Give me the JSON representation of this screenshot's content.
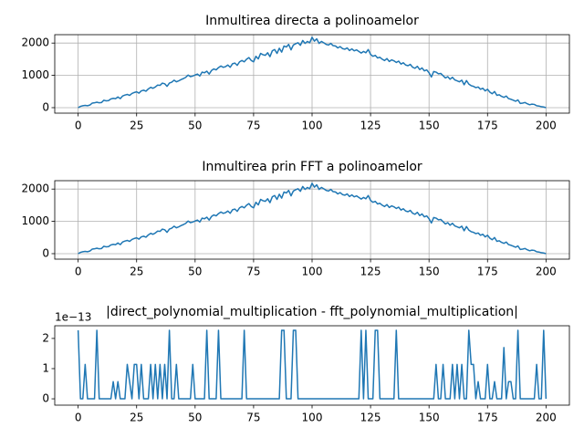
{
  "chart_data": [
    {
      "type": "line",
      "title": "Inmultirea directa a polinoamelor",
      "color": "#1f77b4",
      "grid": true,
      "x": [
        0,
        1,
        2,
        3,
        4,
        5,
        6,
        7,
        8,
        9,
        10,
        11,
        12,
        13,
        14,
        15,
        16,
        17,
        18,
        19,
        20,
        21,
        22,
        23,
        24,
        25,
        26,
        27,
        28,
        29,
        30,
        31,
        32,
        33,
        34,
        35,
        36,
        37,
        38,
        39,
        40,
        41,
        42,
        43,
        44,
        45,
        46,
        47,
        48,
        49,
        50,
        51,
        52,
        53,
        54,
        55,
        56,
        57,
        58,
        59,
        60,
        61,
        62,
        63,
        64,
        65,
        66,
        67,
        68,
        69,
        70,
        71,
        72,
        73,
        74,
        75,
        76,
        77,
        78,
        79,
        80,
        81,
        82,
        83,
        84,
        85,
        86,
        87,
        88,
        89,
        90,
        91,
        92,
        93,
        94,
        95,
        96,
        97,
        98,
        99,
        100,
        101,
        102,
        103,
        104,
        105,
        106,
        107,
        108,
        109,
        110,
        111,
        112,
        113,
        114,
        115,
        116,
        117,
        118,
        119,
        120,
        121,
        122,
        123,
        124,
        125,
        126,
        127,
        128,
        129,
        130,
        131,
        132,
        133,
        134,
        135,
        136,
        137,
        138,
        139,
        140,
        141,
        142,
        143,
        144,
        145,
        146,
        147,
        148,
        149,
        150,
        151,
        152,
        153,
        154,
        155,
        156,
        157,
        158,
        159,
        160,
        161,
        162,
        163,
        164,
        165,
        166,
        167,
        168,
        169,
        170,
        171,
        172,
        173,
        174,
        175,
        176,
        177,
        178,
        179,
        180,
        181,
        182,
        183,
        184,
        185,
        186,
        187,
        188,
        189,
        190,
        191,
        192,
        193,
        194,
        195,
        196,
        197,
        198,
        199,
        200
      ],
      "values": [
        0,
        40,
        60,
        70,
        60,
        80,
        140,
        150,
        170,
        150,
        160,
        230,
        210,
        220,
        270,
        290,
        280,
        330,
        280,
        360,
        390,
        410,
        380,
        440,
        470,
        490,
        450,
        520,
        540,
        510,
        580,
        630,
        600,
        640,
        700,
        690,
        760,
        740,
        660,
        760,
        790,
        850,
        800,
        830,
        870,
        900,
        940,
        1010,
        960,
        980,
        1010,
        1040,
        980,
        1100,
        1080,
        1130,
        1040,
        1150,
        1200,
        1170,
        1240,
        1290,
        1250,
        1270,
        1320,
        1250,
        1360,
        1380,
        1310,
        1420,
        1460,
        1420,
        1500,
        1550,
        1460,
        1420,
        1590,
        1510,
        1680,
        1640,
        1620,
        1700,
        1580,
        1760,
        1800,
        1680,
        1840,
        1720,
        1910,
        1880,
        1960,
        1790,
        1940,
        1980,
        2010,
        1930,
        2080,
        1990,
        2050,
        2010,
        2180,
        2060,
        2130,
        1990,
        2050,
        2010,
        1960,
        1940,
        1990,
        1920,
        1910,
        1850,
        1890,
        1830,
        1810,
        1850,
        1770,
        1820,
        1760,
        1790,
        1740,
        1690,
        1740,
        1700,
        1800,
        1650,
        1590,
        1620,
        1540,
        1560,
        1500,
        1460,
        1520,
        1430,
        1480,
        1450,
        1400,
        1440,
        1350,
        1390,
        1320,
        1300,
        1340,
        1250,
        1220,
        1280,
        1180,
        1230,
        1140,
        1170,
        1080,
        950,
        1120,
        1100,
        1050,
        1060,
        990,
        920,
        960,
        880,
        940,
        860,
        830,
        800,
        850,
        710,
        840,
        730,
        680,
        660,
        620,
        640,
        570,
        600,
        520,
        570,
        480,
        430,
        500,
        380,
        400,
        350,
        320,
        360,
        280,
        260,
        230,
        200,
        240,
        130,
        140,
        160,
        120,
        90,
        110,
        100,
        60,
        50,
        30,
        20,
        0
      ],
      "xlim": [
        -10,
        210
      ],
      "xticks": [
        0,
        25,
        50,
        75,
        100,
        125,
        150,
        175,
        200
      ],
      "ylim": [
        -170,
        2260
      ],
      "yticks": [
        0,
        1000,
        2000
      ]
    },
    {
      "type": "line",
      "title": "Inmultirea prin FFT a polinoamelor",
      "color": "#1f77b4",
      "grid": true,
      "x": [
        0,
        1,
        2,
        3,
        4,
        5,
        6,
        7,
        8,
        9,
        10,
        11,
        12,
        13,
        14,
        15,
        16,
        17,
        18,
        19,
        20,
        21,
        22,
        23,
        24,
        25,
        26,
        27,
        28,
        29,
        30,
        31,
        32,
        33,
        34,
        35,
        36,
        37,
        38,
        39,
        40,
        41,
        42,
        43,
        44,
        45,
        46,
        47,
        48,
        49,
        50,
        51,
        52,
        53,
        54,
        55,
        56,
        57,
        58,
        59,
        60,
        61,
        62,
        63,
        64,
        65,
        66,
        67,
        68,
        69,
        70,
        71,
        72,
        73,
        74,
        75,
        76,
        77,
        78,
        79,
        80,
        81,
        82,
        83,
        84,
        85,
        86,
        87,
        88,
        89,
        90,
        91,
        92,
        93,
        94,
        95,
        96,
        97,
        98,
        99,
        100,
        101,
        102,
        103,
        104,
        105,
        106,
        107,
        108,
        109,
        110,
        111,
        112,
        113,
        114,
        115,
        116,
        117,
        118,
        119,
        120,
        121,
        122,
        123,
        124,
        125,
        126,
        127,
        128,
        129,
        130,
        131,
        132,
        133,
        134,
        135,
        136,
        137,
        138,
        139,
        140,
        141,
        142,
        143,
        144,
        145,
        146,
        147,
        148,
        149,
        150,
        151,
        152,
        153,
        154,
        155,
        156,
        157,
        158,
        159,
        160,
        161,
        162,
        163,
        164,
        165,
        166,
        167,
        168,
        169,
        170,
        171,
        172,
        173,
        174,
        175,
        176,
        177,
        178,
        179,
        180,
        181,
        182,
        183,
        184,
        185,
        186,
        187,
        188,
        189,
        190,
        191,
        192,
        193,
        194,
        195,
        196,
        197,
        198,
        199,
        200
      ],
      "values": [
        0,
        40,
        60,
        70,
        60,
        80,
        140,
        150,
        170,
        150,
        160,
        230,
        210,
        220,
        270,
        290,
        280,
        330,
        280,
        360,
        390,
        410,
        380,
        440,
        470,
        490,
        450,
        520,
        540,
        510,
        580,
        630,
        600,
        640,
        700,
        690,
        760,
        740,
        660,
        760,
        790,
        850,
        800,
        830,
        870,
        900,
        940,
        1010,
        960,
        980,
        1010,
        1040,
        980,
        1100,
        1080,
        1130,
        1040,
        1150,
        1200,
        1170,
        1240,
        1290,
        1250,
        1270,
        1320,
        1250,
        1360,
        1380,
        1310,
        1420,
        1460,
        1420,
        1500,
        1550,
        1460,
        1420,
        1590,
        1510,
        1680,
        1640,
        1620,
        1700,
        1580,
        1760,
        1800,
        1680,
        1840,
        1720,
        1910,
        1880,
        1960,
        1790,
        1940,
        1980,
        2010,
        1930,
        2080,
        1990,
        2050,
        2010,
        2180,
        2060,
        2130,
        1990,
        2050,
        2010,
        1960,
        1940,
        1990,
        1920,
        1910,
        1850,
        1890,
        1830,
        1810,
        1850,
        1770,
        1820,
        1760,
        1790,
        1740,
        1690,
        1740,
        1700,
        1800,
        1650,
        1590,
        1620,
        1540,
        1560,
        1500,
        1460,
        1520,
        1430,
        1480,
        1450,
        1400,
        1440,
        1350,
        1390,
        1320,
        1300,
        1340,
        1250,
        1220,
        1280,
        1180,
        1230,
        1140,
        1170,
        1080,
        950,
        1120,
        1100,
        1050,
        1060,
        990,
        920,
        960,
        880,
        940,
        860,
        830,
        800,
        850,
        710,
        840,
        730,
        680,
        660,
        620,
        640,
        570,
        600,
        520,
        570,
        480,
        430,
        500,
        380,
        400,
        350,
        320,
        360,
        280,
        260,
        230,
        200,
        240,
        130,
        140,
        160,
        120,
        90,
        110,
        100,
        60,
        50,
        30,
        20,
        0
      ],
      "xlim": [
        -10,
        210
      ],
      "xticks": [
        0,
        25,
        50,
        75,
        100,
        125,
        150,
        175,
        200
      ],
      "ylim": [
        -170,
        2260
      ],
      "yticks": [
        0,
        1000,
        2000
      ]
    },
    {
      "type": "line",
      "title": "|direct_polynomial_multiplication - fft_polynomial_multiplication|",
      "color": "#1f77b4",
      "grid": false,
      "offset_label": "1e−13",
      "x": [
        0,
        1,
        2,
        3,
        4,
        5,
        6,
        7,
        8,
        9,
        10,
        11,
        12,
        13,
        14,
        15,
        16,
        17,
        18,
        19,
        20,
        21,
        22,
        23,
        24,
        25,
        26,
        27,
        28,
        29,
        30,
        31,
        32,
        33,
        34,
        35,
        36,
        37,
        38,
        39,
        40,
        41,
        42,
        43,
        44,
        45,
        46,
        47,
        48,
        49,
        50,
        51,
        52,
        53,
        54,
        55,
        56,
        57,
        58,
        59,
        60,
        61,
        62,
        63,
        64,
        65,
        66,
        67,
        68,
        69,
        70,
        71,
        72,
        73,
        74,
        75,
        76,
        77,
        78,
        79,
        80,
        81,
        82,
        83,
        84,
        85,
        86,
        87,
        88,
        89,
        90,
        91,
        92,
        93,
        94,
        95,
        96,
        97,
        98,
        99,
        100,
        101,
        102,
        103,
        104,
        105,
        106,
        107,
        108,
        109,
        110,
        111,
        112,
        113,
        114,
        115,
        116,
        117,
        118,
        119,
        120,
        121,
        122,
        123,
        124,
        125,
        126,
        127,
        128,
        129,
        130,
        131,
        132,
        133,
        134,
        135,
        136,
        137,
        138,
        139,
        140,
        141,
        142,
        143,
        144,
        145,
        146,
        147,
        148,
        149,
        150,
        151,
        152,
        153,
        154,
        155,
        156,
        157,
        158,
        159,
        160,
        161,
        162,
        163,
        164,
        165,
        166,
        167,
        168,
        169,
        170,
        171,
        172,
        173,
        174,
        175,
        176,
        177,
        178,
        179,
        180,
        181,
        182,
        183,
        184,
        185,
        186,
        187,
        188,
        189,
        190,
        191,
        192,
        193,
        194,
        195,
        196,
        197,
        198,
        199,
        200
      ],
      "values": [
        2.27,
        0,
        0,
        1.14,
        0,
        0,
        0,
        0,
        2.27,
        0,
        0,
        0,
        0,
        0,
        0,
        0.57,
        0,
        0.57,
        0,
        0,
        0,
        1.14,
        0.57,
        0,
        1.14,
        1.14,
        0,
        1.14,
        0,
        0,
        0,
        1.14,
        0,
        1.14,
        0,
        1.14,
        0,
        1.14,
        0,
        2.27,
        0,
        0,
        1.14,
        0,
        0,
        0,
        0,
        0,
        0,
        1.14,
        0,
        0,
        0,
        0,
        0,
        2.27,
        0,
        0,
        0,
        0,
        2.27,
        0,
        0,
        0,
        0,
        0,
        0,
        0,
        0,
        0,
        0,
        2.27,
        0,
        0,
        0,
        0,
        0,
        0,
        0,
        0,
        0,
        0,
        0,
        0,
        0,
        0,
        0,
        2.27,
        2.27,
        0,
        0,
        0,
        2.27,
        2.27,
        0,
        0,
        0,
        0,
        0,
        0,
        0,
        0,
        0,
        0,
        0,
        0,
        0,
        0,
        0,
        0,
        0,
        0,
        0,
        0,
        0,
        0,
        0,
        0,
        0,
        0,
        0,
        2.27,
        0,
        2.27,
        0,
        0,
        0,
        2.27,
        2.27,
        0,
        0,
        0,
        0,
        0,
        0,
        0,
        2.27,
        0,
        0,
        0,
        0,
        0,
        0,
        0,
        0,
        0,
        0,
        0,
        0,
        0,
        0,
        0,
        0,
        1.14,
        0,
        0,
        1.14,
        0,
        0,
        0,
        1.14,
        0,
        1.14,
        0,
        1.14,
        0,
        0,
        2.27,
        1.14,
        1.14,
        0,
        0.57,
        0,
        0,
        0,
        1.14,
        0,
        0,
        0.57,
        0,
        0,
        0,
        1.7,
        0,
        0.57,
        0.57,
        0,
        0,
        2.27,
        0,
        0,
        0,
        0,
        0,
        0,
        0,
        1.14,
        0,
        0,
        2.27,
        0
      ],
      "xlim": [
        -10,
        210
      ],
      "xticks": [
        0,
        25,
        50,
        75,
        100,
        125,
        150,
        175,
        200
      ],
      "ylim": [
        -0.21,
        2.42
      ],
      "yticks": [
        0,
        1,
        2
      ]
    }
  ]
}
